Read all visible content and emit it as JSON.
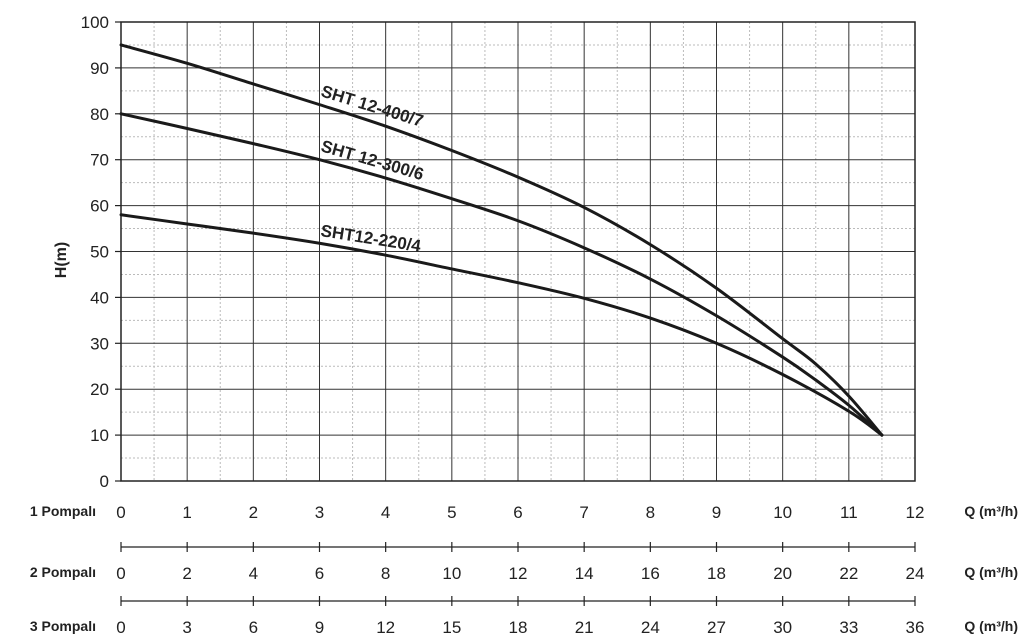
{
  "chart_data": {
    "type": "line",
    "title": "",
    "ylabel": "H(m)",
    "ylim": [
      0,
      100
    ],
    "yticks": [
      "0",
      "10",
      "20",
      "30",
      "40",
      "50",
      "60",
      "70",
      "80",
      "90",
      "100"
    ],
    "xlim": [
      0,
      12
    ],
    "grid": true,
    "axes": [
      {
        "label": "1 Pompalı",
        "unit": "Q (m³/h)",
        "ticks": [
          "0",
          "1",
          "2",
          "3",
          "4",
          "5",
          "6",
          "7",
          "8",
          "9",
          "10",
          "11",
          "12"
        ]
      },
      {
        "label": "2 Pompalı",
        "unit": "Q (m³/h)",
        "ticks": [
          "0",
          "2",
          "4",
          "6",
          "8",
          "10",
          "12",
          "14",
          "16",
          "18",
          "20",
          "22",
          "24"
        ]
      },
      {
        "label": "3 Pompalı",
        "unit": "Q (m³/h)",
        "ticks": [
          "0",
          "3",
          "6",
          "9",
          "12",
          "15",
          "18",
          "21",
          "24",
          "27",
          "30",
          "33",
          "36"
        ]
      }
    ],
    "series": [
      {
        "name": "SHT 12-400/7",
        "x": [
          0,
          1,
          2,
          3,
          4,
          5,
          6,
          7,
          8,
          9,
          10,
          10.5,
          11,
          11.5
        ],
        "y": [
          95,
          91,
          86.5,
          82,
          77.3,
          72,
          66.2,
          59.6,
          51.5,
          42,
          31,
          25.5,
          18.5,
          10
        ]
      },
      {
        "name": "SHT 12-300/6",
        "x": [
          0,
          1,
          2,
          3,
          4,
          5,
          6,
          7,
          8,
          9,
          10,
          10.5,
          11,
          11.5
        ],
        "y": [
          80,
          76.8,
          73.5,
          70,
          66,
          61.5,
          56.7,
          50.8,
          44,
          36,
          27,
          22,
          16.5,
          10
        ]
      },
      {
        "name": "SHT12-220/4",
        "x": [
          0,
          1,
          2,
          3,
          4,
          5,
          6,
          7,
          8,
          9,
          10,
          11,
          11.5
        ],
        "y": [
          58,
          56,
          54,
          51.8,
          49.2,
          46.2,
          43.2,
          39.8,
          35.5,
          30,
          23.2,
          15.2,
          10
        ]
      }
    ]
  }
}
